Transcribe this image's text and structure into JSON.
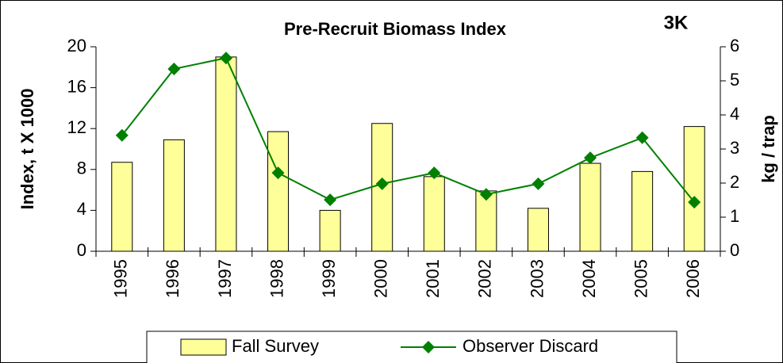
{
  "chart_data": {
    "type": "combo",
    "title": "Pre-Recruit Biomass Index",
    "annotation": "3K",
    "ylabel": "Index, t X 1000",
    "y2label": "kg / trap",
    "categories": [
      "1995",
      "1996",
      "1997",
      "1998",
      "1999",
      "2000",
      "2001",
      "2002",
      "2003",
      "2004",
      "2005",
      "2006"
    ],
    "series": [
      {
        "name": "Fall Survey",
        "type": "bar",
        "color": "#ffff99",
        "values": [
          8.7,
          10.9,
          19.0,
          11.7,
          4.0,
          12.5,
          7.3,
          5.9,
          4.2,
          8.6,
          7.8,
          12.2
        ]
      },
      {
        "name": "Observer Discard",
        "type": "line",
        "axis": "y2",
        "color": "#008000",
        "values": [
          3.4,
          5.35,
          5.67,
          2.3,
          1.51,
          1.98,
          2.3,
          1.67,
          1.98,
          2.74,
          3.33,
          1.44
        ]
      }
    ],
    "ylim": [
      0,
      20
    ],
    "yticks": [
      0,
      4,
      8,
      12,
      16,
      20
    ],
    "y2lim": [
      0,
      6
    ],
    "y2ticks": [
      0,
      1,
      2,
      3,
      4,
      5,
      6
    ]
  }
}
